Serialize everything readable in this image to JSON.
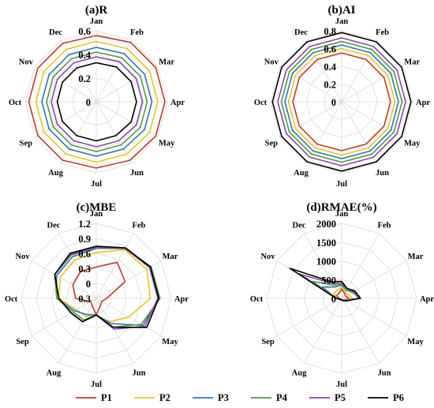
{
  "chart_data": [
    {
      "type": "radar",
      "title": "(a)R",
      "categories": [
        "Jan",
        "Feb",
        "Mar",
        "Apr",
        "May",
        "Jun",
        "Jul",
        "Aug",
        "Sep",
        "Oct",
        "Nov",
        "Dec"
      ],
      "rlim": [
        0,
        0.6
      ],
      "ticks": [
        "0",
        "0.2",
        "0.4",
        "0.6"
      ],
      "series": [
        {
          "name": "P1",
          "values": [
            0.56,
            0.58,
            0.58,
            0.58,
            0.58,
            0.57,
            0.56,
            0.57,
            0.57,
            0.57,
            0.57,
            0.57
          ]
        },
        {
          "name": "P2",
          "values": [
            0.51,
            0.52,
            0.52,
            0.52,
            0.52,
            0.51,
            0.51,
            0.51,
            0.51,
            0.51,
            0.51,
            0.51
          ]
        },
        {
          "name": "P3",
          "values": [
            0.46,
            0.47,
            0.47,
            0.47,
            0.47,
            0.46,
            0.46,
            0.46,
            0.46,
            0.46,
            0.46,
            0.46
          ]
        },
        {
          "name": "P4",
          "values": [
            0.42,
            0.43,
            0.43,
            0.43,
            0.43,
            0.42,
            0.42,
            0.42,
            0.42,
            0.42,
            0.42,
            0.42
          ]
        },
        {
          "name": "P5",
          "values": [
            0.38,
            0.39,
            0.39,
            0.39,
            0.39,
            0.38,
            0.38,
            0.38,
            0.38,
            0.38,
            0.38,
            0.38
          ]
        },
        {
          "name": "P6",
          "values": [
            0.33,
            0.34,
            0.34,
            0.34,
            0.34,
            0.33,
            0.33,
            0.33,
            0.33,
            0.33,
            0.33,
            0.33
          ]
        }
      ]
    },
    {
      "type": "radar",
      "title": "(b)AI",
      "categories": [
        "Jan",
        "Feb",
        "Mar",
        "Apr",
        "May",
        "Jun",
        "Jul",
        "Aug",
        "Sep",
        "Oct",
        "Nov",
        "Dec"
      ],
      "rlim": [
        0,
        0.8
      ],
      "ticks": [
        "0",
        "0.2",
        "0.4",
        "0.6",
        "0.8"
      ],
      "series": [
        {
          "name": "P1",
          "values": [
            0.55,
            0.55,
            0.55,
            0.55,
            0.55,
            0.55,
            0.55,
            0.55,
            0.55,
            0.55,
            0.55,
            0.55
          ]
        },
        {
          "name": "P2",
          "values": [
            0.6,
            0.6,
            0.6,
            0.6,
            0.6,
            0.6,
            0.6,
            0.6,
            0.6,
            0.6,
            0.6,
            0.6
          ]
        },
        {
          "name": "P3",
          "values": [
            0.64,
            0.64,
            0.64,
            0.64,
            0.64,
            0.64,
            0.64,
            0.64,
            0.64,
            0.64,
            0.64,
            0.64
          ]
        },
        {
          "name": "P4",
          "values": [
            0.68,
            0.68,
            0.68,
            0.68,
            0.68,
            0.68,
            0.68,
            0.68,
            0.68,
            0.68,
            0.68,
            0.68
          ]
        },
        {
          "name": "P5",
          "values": [
            0.72,
            0.72,
            0.72,
            0.72,
            0.72,
            0.72,
            0.72,
            0.72,
            0.72,
            0.72,
            0.72,
            0.72
          ]
        },
        {
          "name": "P6",
          "values": [
            0.78,
            0.78,
            0.78,
            0.78,
            0.78,
            0.78,
            0.78,
            0.78,
            0.78,
            0.78,
            0.78,
            0.78
          ]
        }
      ]
    },
    {
      "type": "radar",
      "title": "(c)MBE",
      "categories": [
        "Jan",
        "Feb",
        "Mar",
        "Apr",
        "May",
        "Jun",
        "Jul",
        "Aug",
        "Sep",
        "Oct",
        "Nov",
        "Dec"
      ],
      "rlim": [
        -0.6,
        1.2
      ],
      "ticks": [
        "0.3",
        "0",
        "0.3",
        "0.6",
        "0.9",
        "1.2"
      ],
      "series": [
        {
          "name": "P1",
          "values": [
            0.15,
            0.4,
            0.2,
            -0.35,
            -0.45,
            -0.4,
            -0.2,
            -0.4,
            -0.45,
            -0.1,
            0.05,
            0.15
          ]
        },
        {
          "name": "P2",
          "values": [
            0.5,
            0.75,
            0.8,
            0.7,
            0.3,
            0.05,
            -0.2,
            -0.1,
            -0.05,
            0.3,
            0.4,
            0.45
          ]
        },
        {
          "name": "P3",
          "values": [
            0.6,
            0.78,
            0.9,
            0.9,
            0.7,
            0.1,
            -0.2,
            -0.15,
            0.0,
            0.35,
            0.5,
            0.55
          ]
        },
        {
          "name": "P4",
          "values": [
            0.62,
            0.78,
            0.92,
            0.93,
            0.65,
            0.2,
            -0.2,
            0.0,
            0.05,
            0.35,
            0.55,
            0.6
          ]
        },
        {
          "name": "P5",
          "values": [
            0.63,
            0.78,
            0.88,
            0.88,
            0.75,
            0.25,
            -0.2,
            0.05,
            0.1,
            0.3,
            0.55,
            0.62
          ]
        },
        {
          "name": "P6",
          "values": [
            0.65,
            0.8,
            0.9,
            0.9,
            0.8,
            0.2,
            -0.2,
            0.05,
            0.1,
            0.3,
            0.55,
            0.65
          ]
        }
      ]
    },
    {
      "type": "radar",
      "title": "(d)RMAE(%)",
      "categories": [
        "Jan",
        "Feb",
        "Mar",
        "Apr",
        "May",
        "Jun",
        "Jul",
        "Aug",
        "Sep",
        "Oct",
        "Nov",
        "Dec"
      ],
      "rlim": [
        0,
        2000
      ],
      "ticks": [
        "0",
        "500",
        "1000",
        "1500",
        "2000"
      ],
      "series": [
        {
          "name": "P1",
          "values": [
            250,
            150,
            120,
            200,
            80,
            50,
            30,
            40,
            40,
            80,
            150,
            150
          ]
        },
        {
          "name": "P2",
          "values": [
            300,
            200,
            200,
            300,
            100,
            60,
            40,
            50,
            50,
            120,
            250,
            250
          ]
        },
        {
          "name": "P3",
          "values": [
            350,
            250,
            350,
            450,
            120,
            70,
            40,
            50,
            50,
            150,
            600,
            350
          ]
        },
        {
          "name": "P4",
          "values": [
            380,
            250,
            320,
            500,
            130,
            70,
            40,
            50,
            50,
            150,
            900,
            400
          ]
        },
        {
          "name": "P5",
          "values": [
            400,
            300,
            380,
            480,
            130,
            70,
            40,
            50,
            50,
            150,
            1300,
            450
          ]
        },
        {
          "name": "P6",
          "values": [
            450,
            300,
            400,
            500,
            140,
            70,
            40,
            50,
            50,
            150,
            1600,
            500
          ]
        }
      ]
    }
  ],
  "legend": [
    {
      "name": "P1",
      "color": "#c0392b"
    },
    {
      "name": "P2",
      "color": "#e6c619"
    },
    {
      "name": "P3",
      "color": "#2e75b6"
    },
    {
      "name": "P4",
      "color": "#4e9a3f"
    },
    {
      "name": "P5",
      "color": "#8e44ad"
    },
    {
      "name": "P6",
      "color": "#000000"
    }
  ],
  "grid": true,
  "legend_position": "bottom"
}
